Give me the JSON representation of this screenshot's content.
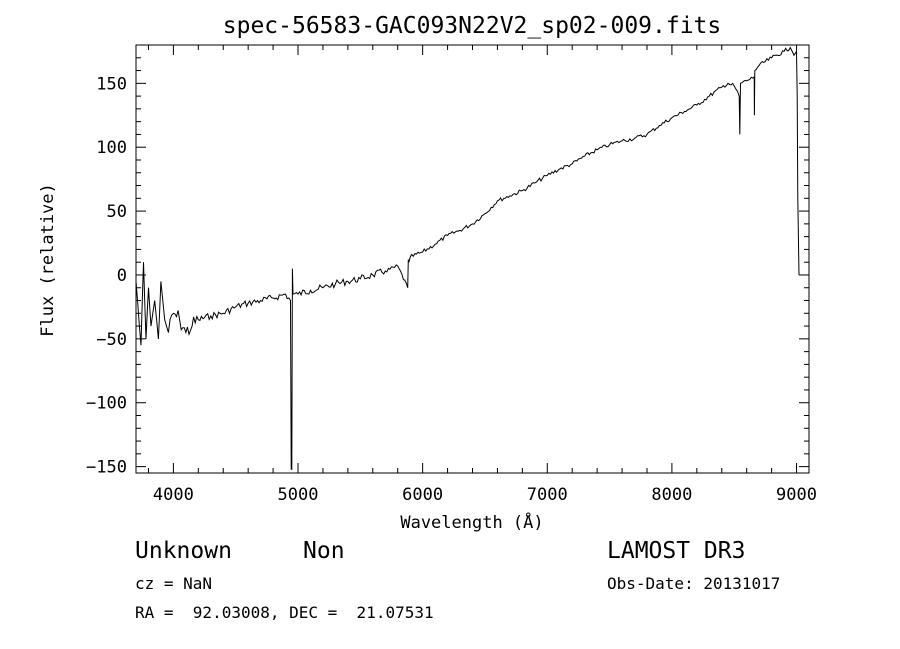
{
  "chart_data": {
    "type": "line",
    "title": "spec-56583-GAC093N22V2_sp02-009.fits",
    "xlabel": "Wavelength (Å)",
    "ylabel": "Flux (relative)",
    "xlim": [
      3700,
      9100
    ],
    "ylim": [
      -155,
      180
    ],
    "x_ticks": [
      4000,
      5000,
      6000,
      7000,
      8000,
      9000
    ],
    "y_ticks": [
      -150,
      -100,
      -50,
      0,
      50,
      100,
      150
    ],
    "x_tick_labels": [
      "4000",
      "5000",
      "6000",
      "7000",
      "8000",
      "9000"
    ],
    "y_tick_labels": [
      "−150",
      "−100",
      "−50",
      "0",
      "50",
      "100",
      "150"
    ],
    "series": [
      {
        "color": "#000000",
        "x": [
          3700,
          3740,
          3760,
          3780,
          3800,
          3820,
          3850,
          3880,
          3900,
          3930,
          3960,
          4000,
          4050,
          4100,
          4150,
          4200,
          4300,
          4400,
          4500,
          4600,
          4700,
          4800,
          4900,
          4940,
          4945,
          4950,
          4955,
          4960,
          5000,
          5100,
          5200,
          5300,
          5400,
          5500,
          5600,
          5700,
          5800,
          5880,
          5885,
          5890,
          5900,
          6000,
          6100,
          6200,
          6300,
          6400,
          6500,
          6600,
          6700,
          6800,
          6900,
          7000,
          7100,
          7200,
          7300,
          7400,
          7500,
          7600,
          7700,
          7800,
          7900,
          8000,
          8100,
          8200,
          8300,
          8400,
          8450,
          8500,
          8540,
          8545,
          8550,
          8600,
          8660,
          8662,
          8665,
          8700,
          8800,
          8900,
          8950,
          8980,
          9000,
          9005,
          9010,
          9020
        ],
        "y": [
          -5,
          -55,
          10,
          -50,
          -10,
          -40,
          -20,
          -50,
          -5,
          -35,
          -45,
          -30,
          -35,
          -45,
          -40,
          -35,
          -32,
          -30,
          -25,
          -22,
          -20,
          -18,
          -15,
          -20,
          -152,
          -152,
          5,
          -15,
          -15,
          -12,
          -10,
          -7,
          -5,
          -3,
          0,
          3,
          7,
          -10,
          12,
          10,
          14,
          18,
          24,
          31,
          35,
          40,
          48,
          58,
          62,
          66,
          72,
          78,
          83,
          87,
          93,
          98,
          102,
          105,
          107,
          110,
          117,
          123,
          128,
          133,
          140,
          147,
          150,
          148,
          140,
          110,
          150,
          152,
          155,
          125,
          160,
          164,
          170,
          175,
          178,
          172,
          175,
          140,
          60,
          0
        ]
      }
    ]
  },
  "info": {
    "object_class": "Unknown",
    "subclass": "Non",
    "survey": "LAMOST DR3",
    "cz_line": "cz = NaN",
    "obs_date_line": "Obs-Date: 20131017",
    "coords_line": "RA =  92.03008, DEC =  21.07531"
  }
}
